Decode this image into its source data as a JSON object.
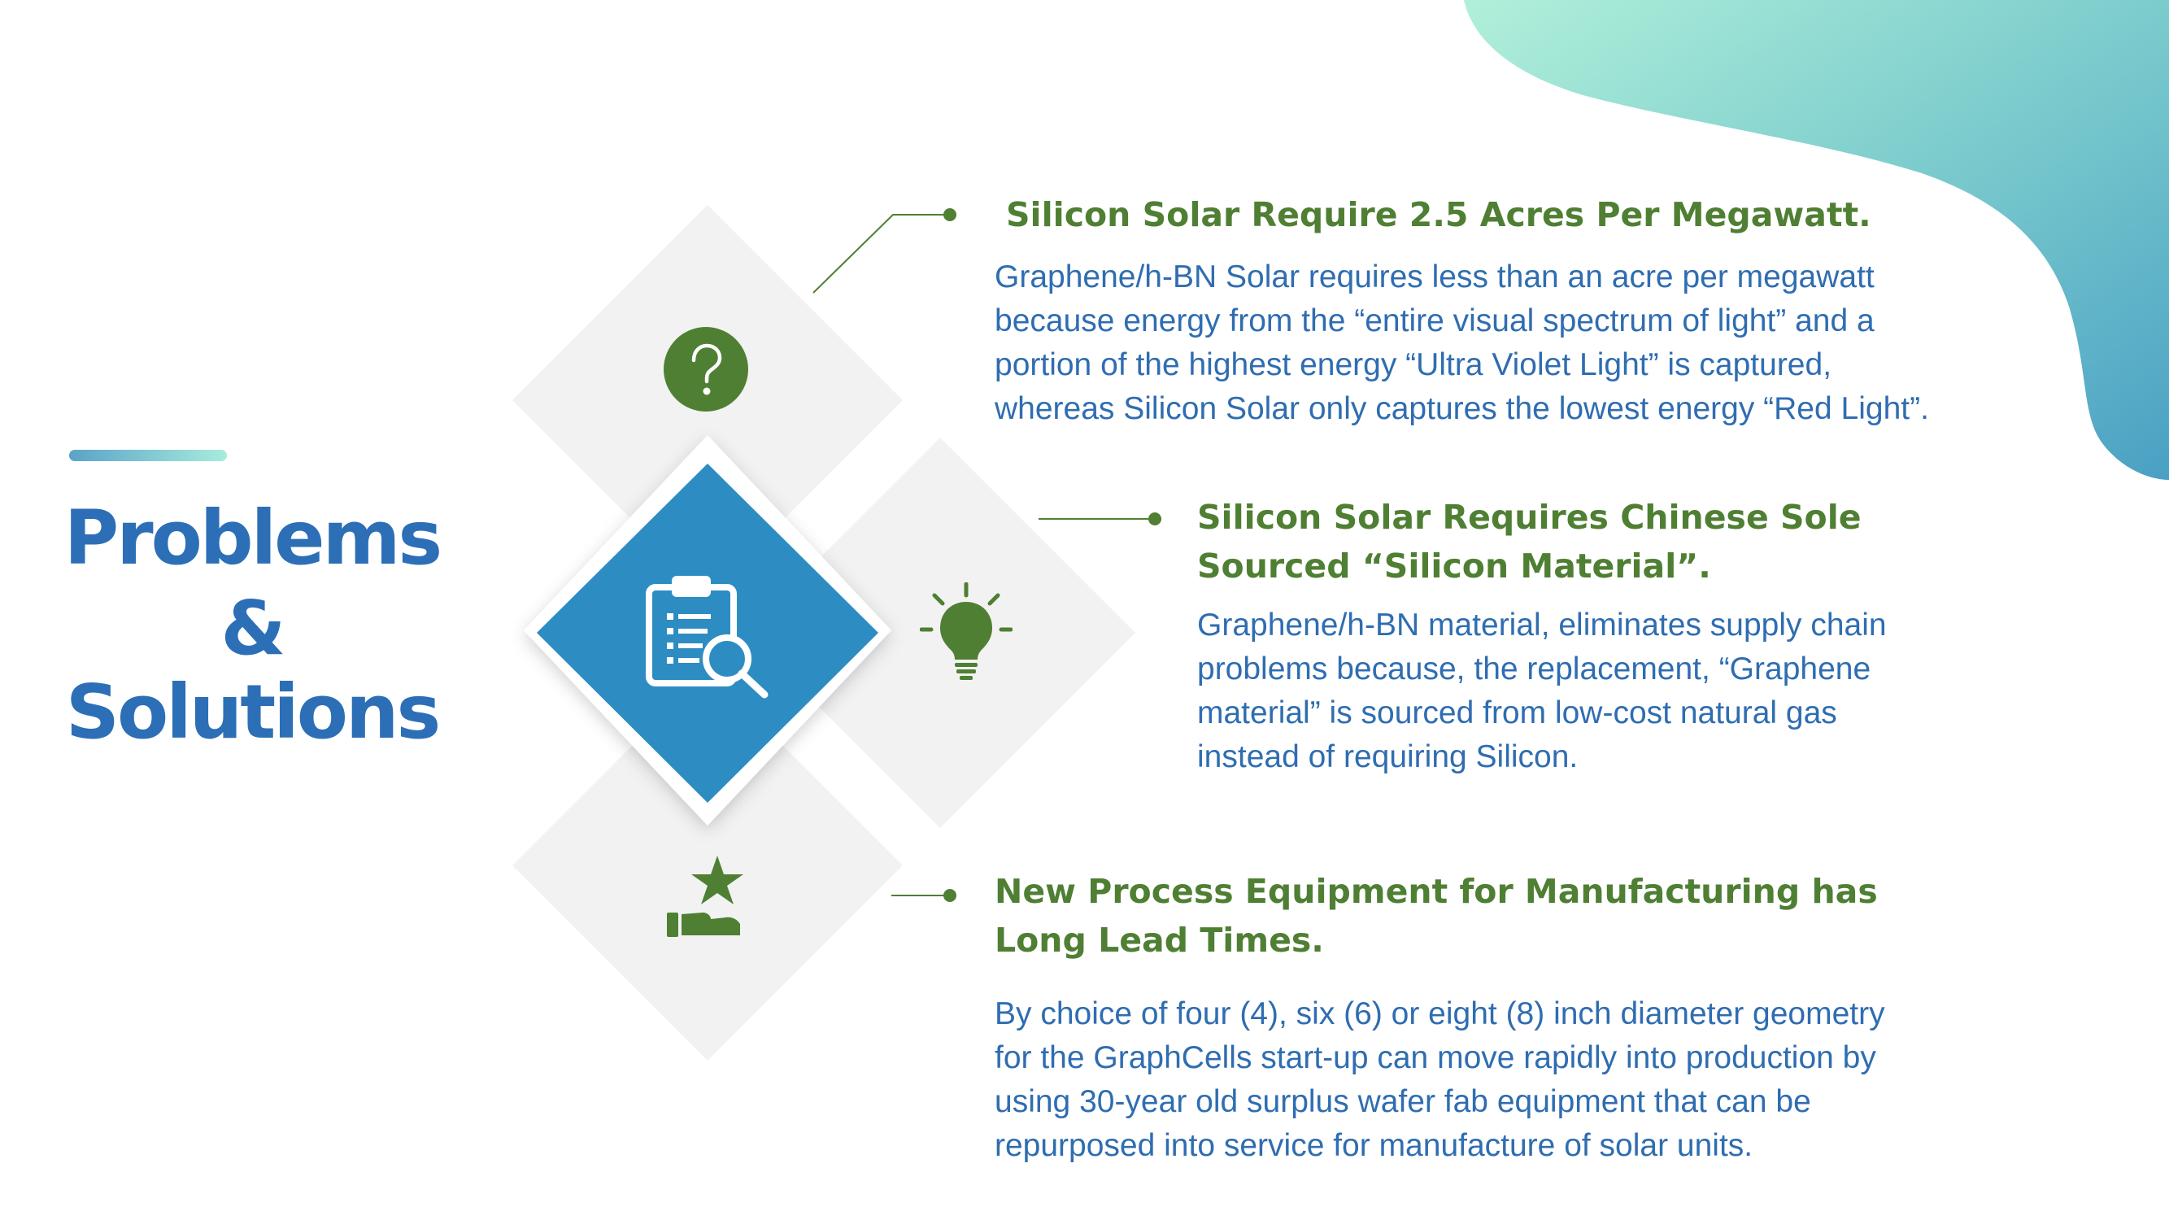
{
  "title": {
    "line1": "Problems",
    "line2": "&",
    "line3": "Solutions"
  },
  "colors": {
    "title_blue": "#2c6fb6",
    "heading_green": "#4f7f33",
    "body_blue": "#2f6db1",
    "center_diamond": "#2d8dc3",
    "side_diamond": "#f2f2f2"
  },
  "icons": {
    "problem": "question-icon",
    "analysis": "clipboard-search-icon",
    "solution": "lightbulb-icon",
    "result": "hand-star-icon"
  },
  "items": [
    {
      "heading": "Silicon Solar Require 2.5 Acres Per Megawatt.",
      "body": [
        "Graphene/h-BN Solar requires less than an acre per megawatt",
        "because energy from the “entire visual spectrum of light” and a",
        "portion of the highest energy “Ultra Violet Light” is captured,",
        "whereas Silicon Solar only captures the lowest energy “Red Light”."
      ]
    },
    {
      "heading": [
        "Silicon Solar Requires Chinese Sole",
        "Sourced “Silicon Material”."
      ],
      "body": [
        "Graphene/h-BN material, eliminates supply chain",
        "problems because, the replacement, “Graphene",
        "material” is sourced from low-cost natural gas",
        "instead of requiring Silicon."
      ]
    },
    {
      "heading": [
        "New Process Equipment for Manufacturing has",
        "Long Lead Times."
      ],
      "body": [
        "By choice of four (4), six (6) or eight (8) inch diameter geometry",
        "for the GraphCells start-up can move rapidly into production by",
        "using 30-year old surplus wafer fab equipment that can be",
        "repurposed into service for manufacture of solar units."
      ]
    }
  ]
}
